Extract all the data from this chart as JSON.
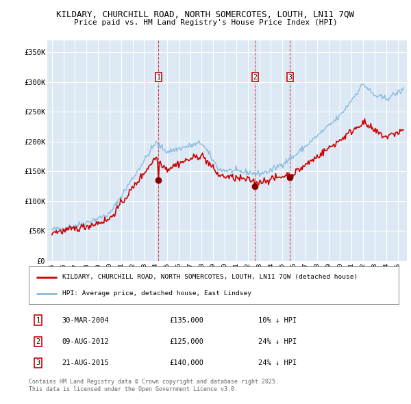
{
  "title_line1": "KILDARY, CHURCHILL ROAD, NORTH SOMERCOTES, LOUTH, LN11 7QW",
  "title_line2": "Price paid vs. HM Land Registry's House Price Index (HPI)",
  "background_color": "#dce9f5",
  "fig_bg_color": "#ffffff",
  "ylim": [
    0,
    370000
  ],
  "yticks": [
    0,
    50000,
    100000,
    150000,
    200000,
    250000,
    300000,
    350000
  ],
  "ytick_labels": [
    "£0",
    "£50K",
    "£100K",
    "£150K",
    "£200K",
    "£250K",
    "£300K",
    "£350K"
  ],
  "red_line_color": "#cc0000",
  "blue_line_color": "#88bbdd",
  "vline_color": "#dd3333",
  "marker_color": "#880000",
  "sale_years": [
    2004.25,
    2012.62,
    2015.65
  ],
  "sale_prices": [
    135000,
    125000,
    140000
  ],
  "sale_labels": [
    "1",
    "2",
    "3"
  ],
  "legend_entries": [
    "KILDARY, CHURCHILL ROAD, NORTH SOMERCOTES, LOUTH, LN11 7QW (detached house)",
    "HPI: Average price, detached house, East Lindsey"
  ],
  "table_rows": [
    {
      "num": "1",
      "date": "30-MAR-2004",
      "price": "£135,000",
      "hpi": "10% ↓ HPI"
    },
    {
      "num": "2",
      "date": "09-AUG-2012",
      "price": "£125,000",
      "hpi": "24% ↓ HPI"
    },
    {
      "num": "3",
      "date": "21-AUG-2015",
      "price": "£140,000",
      "hpi": "24% ↓ HPI"
    }
  ],
  "footer_text": "Contains HM Land Registry data © Crown copyright and database right 2025.\nThis data is licensed under the Open Government Licence v3.0."
}
